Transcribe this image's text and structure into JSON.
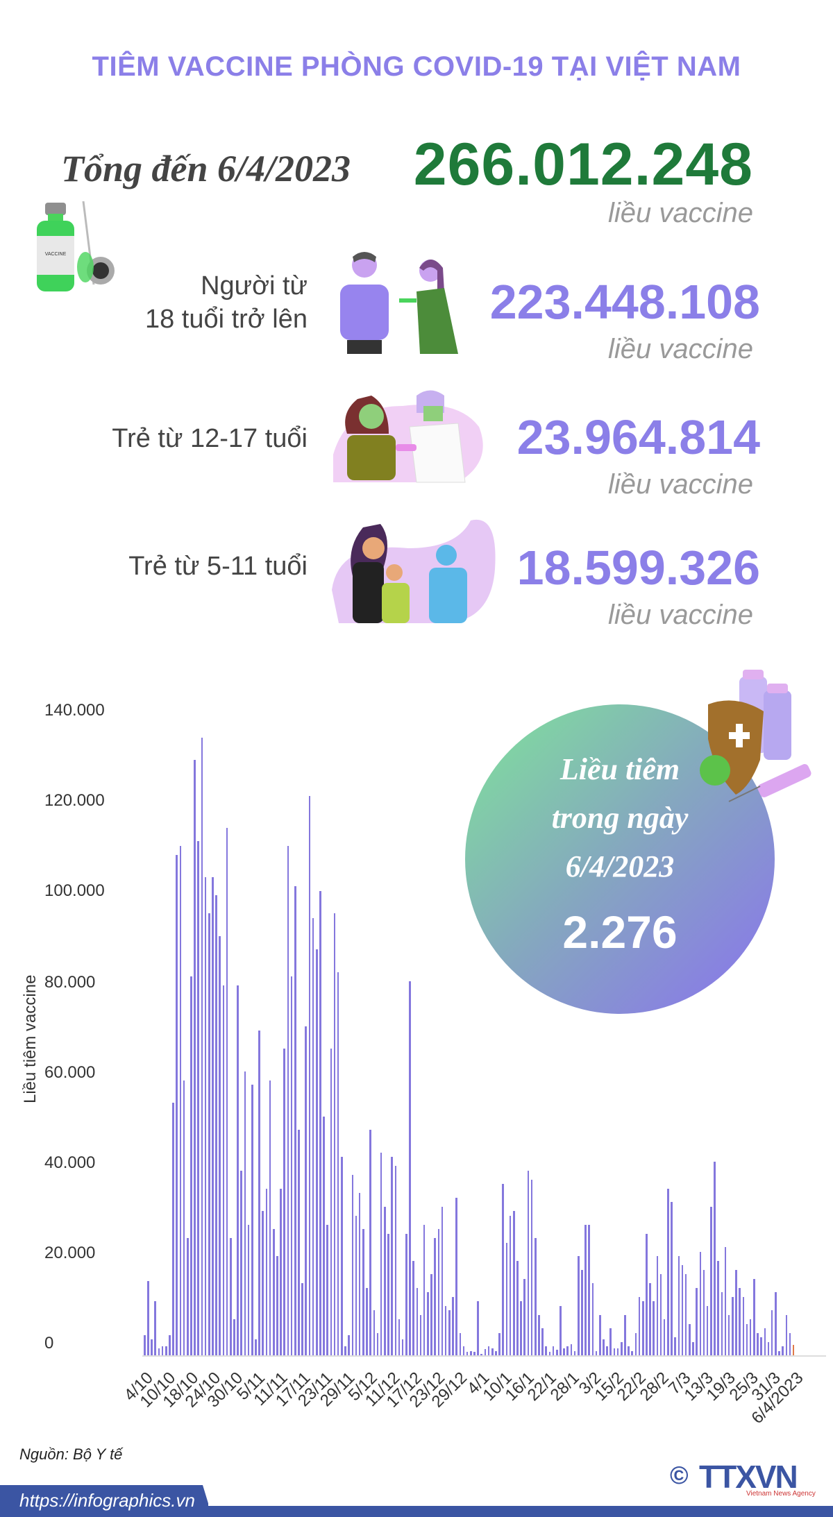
{
  "header": {
    "title": "TIÊM VACCINE PHÒNG COVID-19 TẠI VIỆT NAM"
  },
  "summary": {
    "total_label": "Tổng đến 6/4/2023",
    "total_value": "266.012.248",
    "unit": "liều vaccine",
    "rows": [
      {
        "label_line1": "Người từ",
        "label_line2": "18 tuổi trở lên",
        "value": "223.448.108",
        "unit": "liều vaccine"
      },
      {
        "label_line1": "Trẻ từ 12-17 tuổi",
        "label_line2": "",
        "value": "23.964.814",
        "unit": "liều vaccine"
      },
      {
        "label_line1": "Trẻ từ 5-11 tuổi",
        "label_line2": "",
        "value": "18.599.326",
        "unit": "liều vaccine"
      }
    ],
    "icons": [
      "vaccine-bottle-icon",
      "adult-vaccination-illustration",
      "teen-vaccination-illustration",
      "child-vaccination-illustration"
    ]
  },
  "daily": {
    "line1": "Liều tiêm",
    "line2": "trong ngày",
    "line3": "6/4/2023",
    "value": "2.276",
    "icons": [
      "shield-cross-icon",
      "vaccine-vials-icon",
      "syringe-icon",
      "virus-icon"
    ]
  },
  "colors": {
    "title": "#8b7fe8",
    "total": "#1f7a3a",
    "row_value": "#8b7fe8",
    "bar": "#8477dd",
    "last_bar": "#e07a4a",
    "footer": "#3b55a3"
  },
  "chart_data": {
    "type": "bar",
    "title": "",
    "xlabel": "",
    "ylabel": "Liều tiêm vaccine",
    "ylim": [
      0,
      140000
    ],
    "yticks": [
      "0",
      "20.000",
      "40.000",
      "60.000",
      "80.000",
      "100.000",
      "120.000",
      "140.000"
    ],
    "grid": false,
    "xtick_labels": [
      "4/10",
      "10/10",
      "18/10",
      "24/10",
      "30/10",
      "5/11",
      "11/11",
      "17/11",
      "23/11",
      "29/11",
      "5/12",
      "11/12",
      "17/12",
      "23/12",
      "29/12",
      "4/1",
      "10/1",
      "16/1",
      "22/1",
      "28/1",
      "3/2",
      "15/2",
      "22/2",
      "28/2",
      "7/3",
      "13/3",
      "19/3",
      "25/3",
      "31/3",
      "6/4/2023"
    ],
    "highlight_last": true,
    "values": [
      4500,
      16500,
      3500,
      12000,
      1500,
      2000,
      2000,
      4500,
      56000,
      111000,
      113000,
      61000,
      26000,
      84000,
      132000,
      114000,
      137000,
      106000,
      98000,
      106000,
      102000,
      93000,
      82000,
      117000,
      26000,
      8000,
      82000,
      41000,
      63000,
      29000,
      60000,
      3500,
      72000,
      32000,
      37000,
      61000,
      28000,
      22000,
      37000,
      68000,
      113000,
      84000,
      104000,
      50000,
      16000,
      73000,
      124000,
      97000,
      90000,
      103000,
      53000,
      29000,
      68000,
      98000,
      85000,
      44000,
      2000,
      4500,
      40000,
      31000,
      36000,
      28000,
      15000,
      50000,
      10000,
      5000,
      45000,
      33000,
      27000,
      44000,
      42000,
      8000,
      3500,
      27000,
      83000,
      21000,
      15000,
      9000,
      29000,
      14000,
      18000,
      26000,
      28000,
      33000,
      11000,
      10000,
      13000,
      35000,
      5000,
      2000,
      800,
      1000,
      800,
      12000,
      300,
      1400,
      2000,
      1500,
      1000,
      5000,
      38000,
      25000,
      31000,
      32000,
      21000,
      12000,
      17000,
      41000,
      39000,
      26000,
      9000,
      6000,
      2000,
      700,
      2000,
      1300,
      11000,
      1500,
      2000,
      2500,
      1000,
      22000,
      19000,
      29000,
      29000,
      16000,
      1000,
      9000,
      3500,
      2000,
      6000,
      1500,
      1500,
      3000,
      9000,
      2000,
      1000,
      5000,
      13000,
      12000,
      27000,
      16000,
      12000,
      22000,
      18000,
      8000,
      37000,
      34000,
      4000,
      22000,
      20000,
      18000,
      7000,
      3000,
      15000,
      23000,
      19000,
      11000,
      33000,
      43000,
      21000,
      14000,
      24000,
      9000,
      13000,
      19000,
      15000,
      13000,
      7000,
      8000,
      17000,
      5000,
      4000,
      6000,
      3000,
      10000,
      14000,
      1000,
      2000,
      9000,
      5000,
      2276
    ]
  },
  "footer": {
    "source": "Nguồn: Bộ Y tế",
    "url": "https://infographics.vn",
    "logo_text": "TTXVN",
    "logo_subtext": "Vietnam News Agency",
    "copyright": "©"
  }
}
